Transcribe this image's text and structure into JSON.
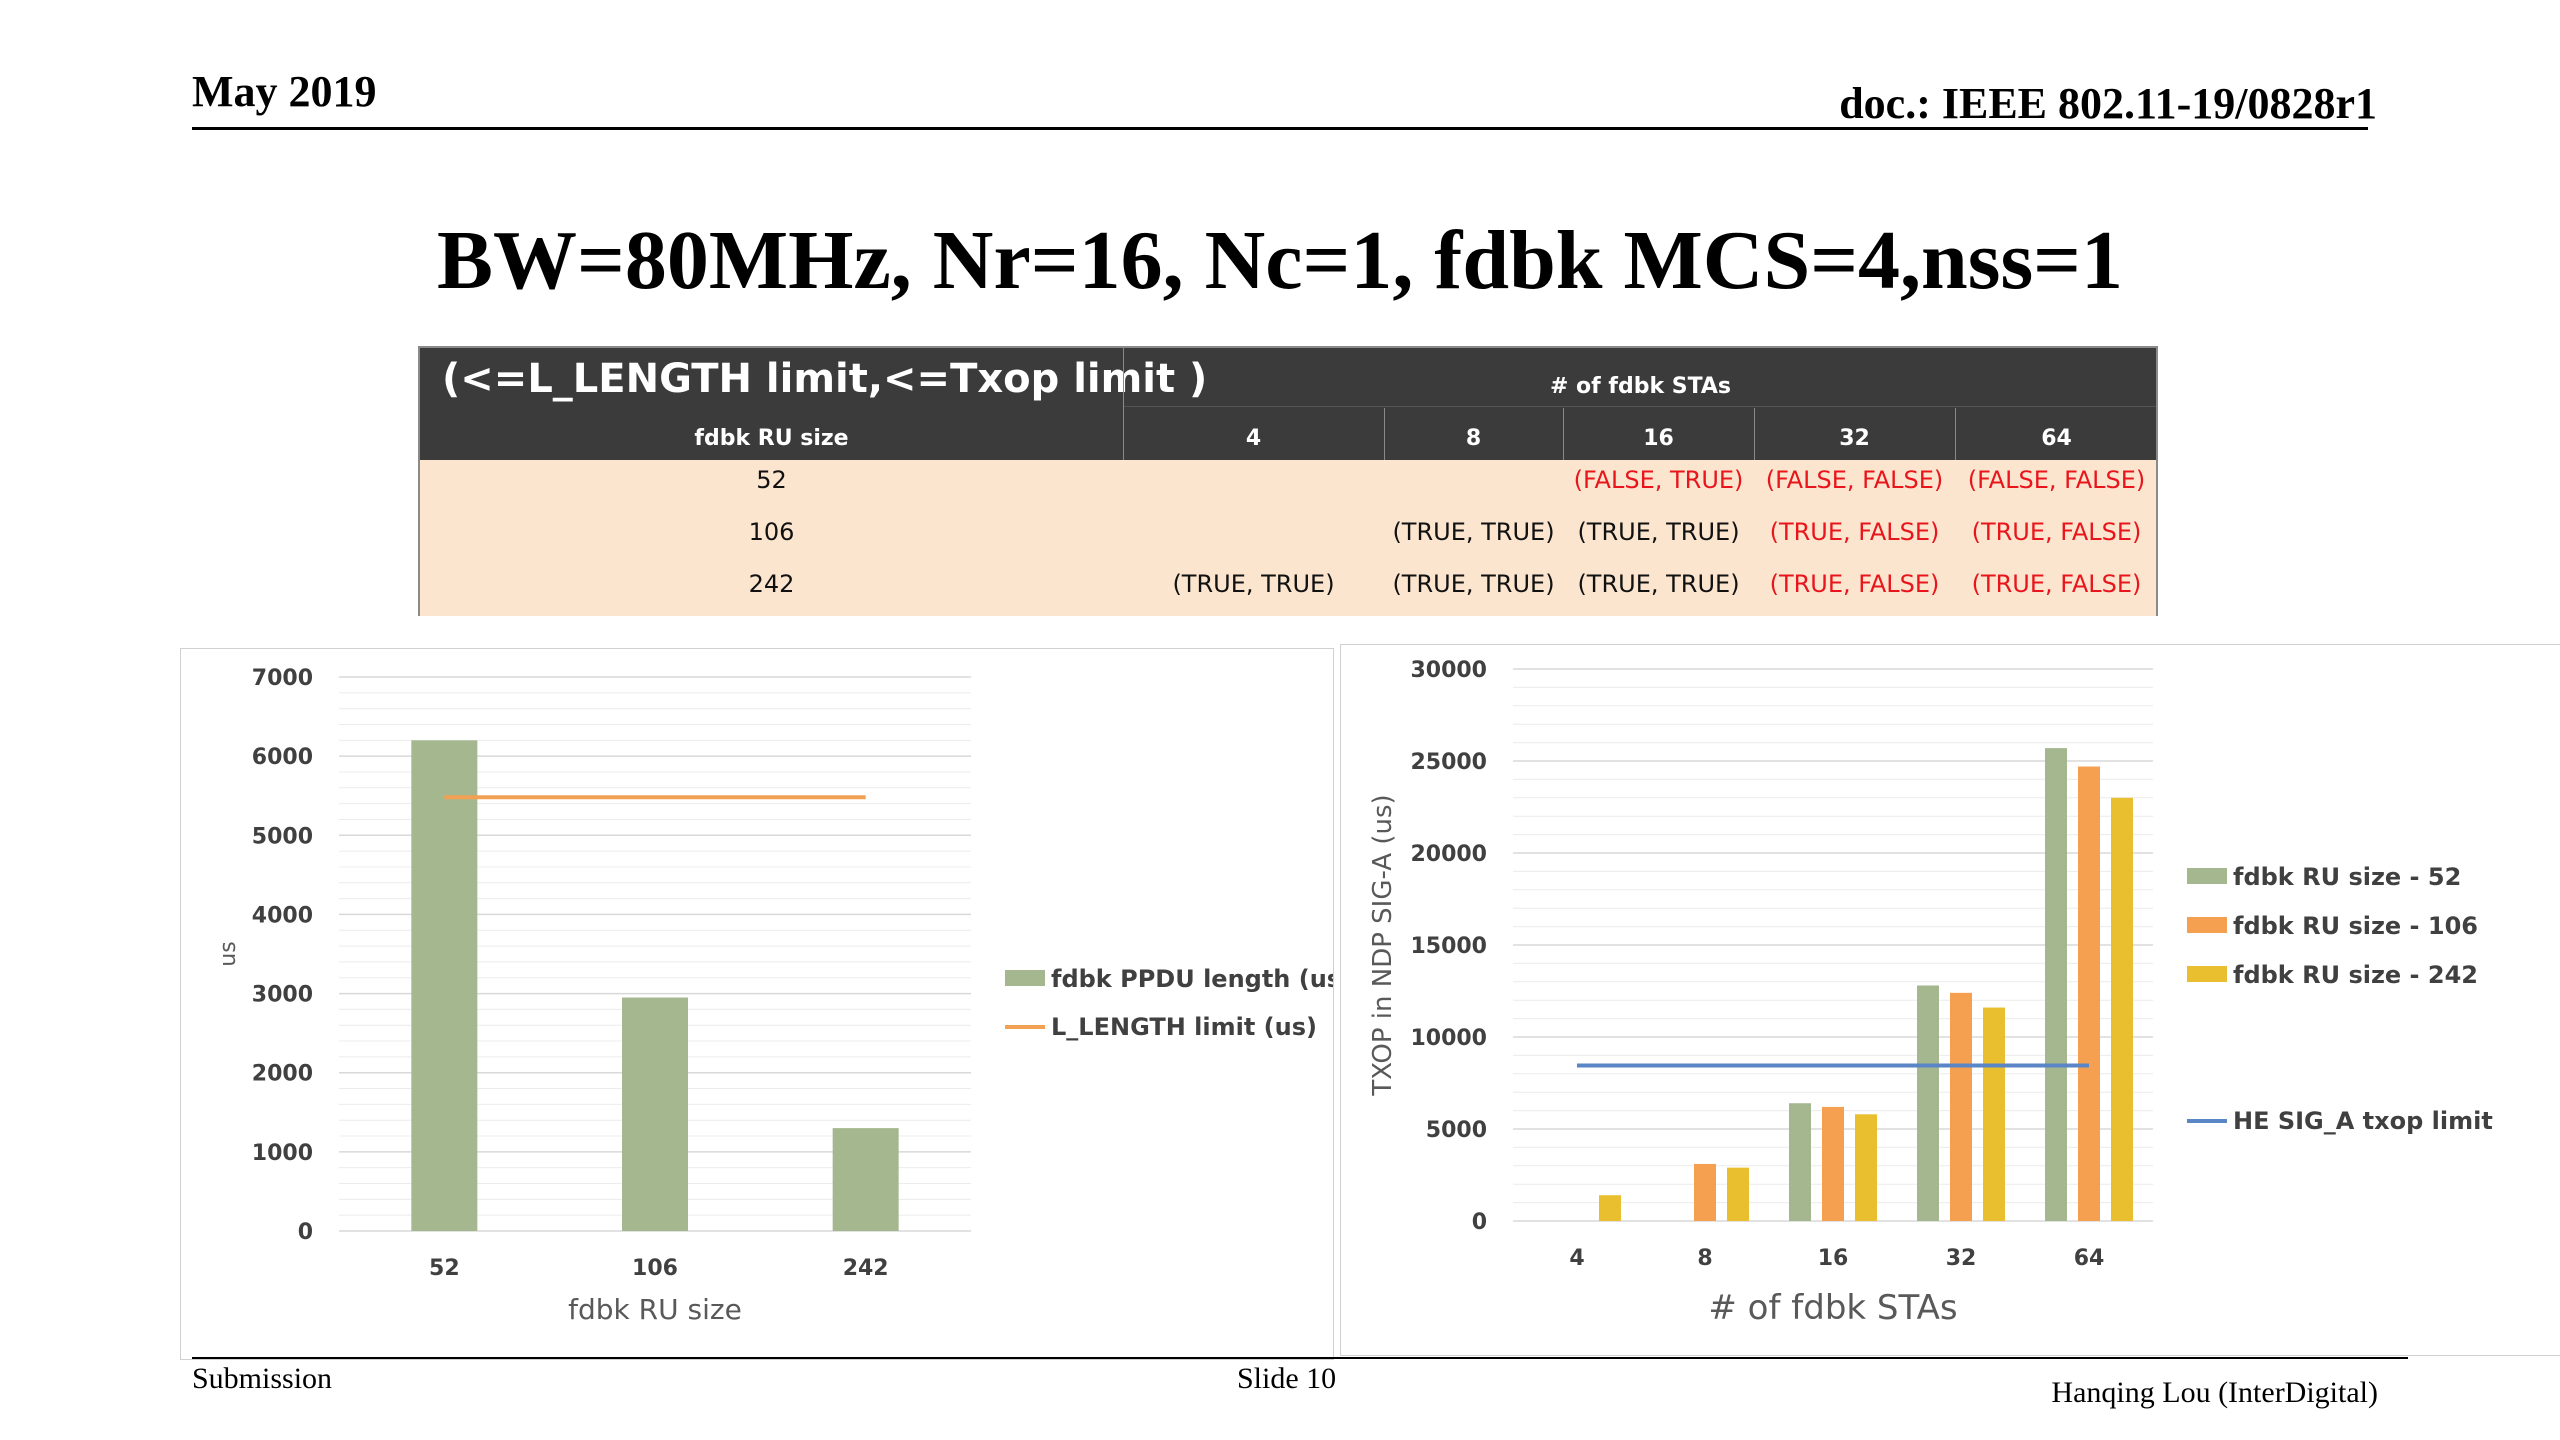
{
  "header": {
    "date": "May 2019",
    "doc": "doc.: IEEE 802.11-19/0828r1"
  },
  "title": "BW=80MHz, Nr=16, Nc=1, fdbk MCS=4,nss=1",
  "table": {
    "caption": "(<=L_LENGTH limit,<=Txop limit )",
    "group_header": "# of fdbk STAs",
    "row_header": "fdbk RU size",
    "columns": [
      "4",
      "8",
      "16",
      "32",
      "64"
    ],
    "rows": [
      {
        "ru": "52",
        "cells": [
          "",
          "",
          "(FALSE, TRUE)",
          "(FALSE, FALSE)",
          "(FALSE, FALSE)"
        ],
        "red": [
          false,
          false,
          true,
          true,
          true
        ]
      },
      {
        "ru": "106",
        "cells": [
          "",
          "(TRUE, TRUE)",
          "(TRUE, TRUE)",
          "(TRUE, FALSE)",
          "(TRUE, FALSE)"
        ],
        "red": [
          false,
          false,
          false,
          true,
          true
        ]
      },
      {
        "ru": "242",
        "cells": [
          "(TRUE, TRUE)",
          "(TRUE, TRUE)",
          "(TRUE, TRUE)",
          "(TRUE, FALSE)",
          "(TRUE, FALSE)"
        ],
        "red": [
          false,
          false,
          false,
          true,
          true
        ]
      }
    ]
  },
  "chart_data": [
    {
      "type": "bar",
      "categories": [
        "52",
        "106",
        "242"
      ],
      "series": [
        {
          "name": "fdbk PPDU length (us)",
          "kind": "bar",
          "color": "#a4b78e",
          "values": [
            6200,
            2950,
            1300
          ]
        },
        {
          "name": "L_LENGTH limit (us)",
          "kind": "line",
          "color": "#f2a054",
          "values": [
            5480,
            5480,
            5480
          ]
        }
      ],
      "xlabel": "fdbk RU size",
      "ylabel": "us",
      "ylim": [
        0,
        7000
      ],
      "yticks": [
        0,
        1000,
        2000,
        3000,
        4000,
        5000,
        6000,
        7000
      ],
      "legend": "right",
      "grid": true
    },
    {
      "type": "bar",
      "categories": [
        "4",
        "8",
        "16",
        "32",
        "64"
      ],
      "series": [
        {
          "name": "fdbk RU size - 52",
          "kind": "bar",
          "color": "#a4b78e",
          "values": [
            null,
            null,
            6400,
            12800,
            25700
          ]
        },
        {
          "name": "fdbk RU size - 106",
          "kind": "bar",
          "color": "#f4a050",
          "values": [
            null,
            3100,
            6200,
            12400,
            24700
          ]
        },
        {
          "name": "fdbk RU size - 242",
          "kind": "bar",
          "color": "#e9bf2f",
          "values": [
            1400,
            2900,
            5800,
            11600,
            23000
          ]
        },
        {
          "name": "HE SIG_A txop limit",
          "kind": "line",
          "color": "#5b86c5",
          "values": [
            8450,
            8450,
            8450,
            8450,
            8450
          ]
        }
      ],
      "xlabel": "# of fdbk STAs",
      "ylabel": "TXOP in NDP SIG-A (us)",
      "ylim": [
        0,
        30000
      ],
      "yticks": [
        0,
        5000,
        10000,
        15000,
        20000,
        25000,
        30000
      ],
      "legend": "right",
      "grid": true
    }
  ],
  "footer": {
    "left": "Submission",
    "center": "Slide 10",
    "right": "Hanqing Lou (InterDigital)"
  }
}
